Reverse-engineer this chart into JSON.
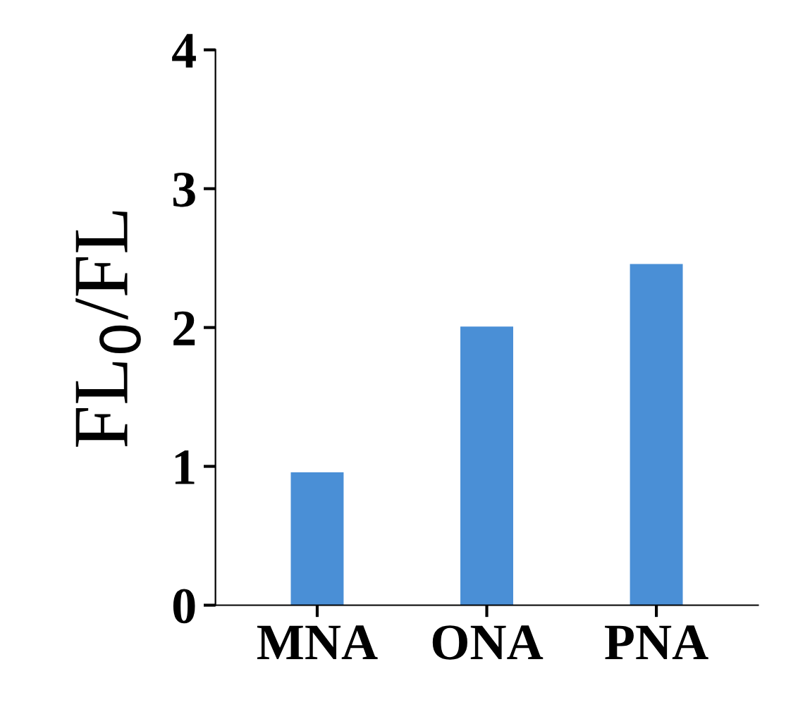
{
  "chart_data": {
    "type": "bar",
    "ylabel": "FL$_{0}$/FL",
    "categories": [
      "MNA",
      "ONA",
      "PNA"
    ],
    "values": [
      0.95,
      2.0,
      2.45
    ],
    "color": "#4a8fd6",
    "ylim": [
      0,
      4
    ],
    "yticks": [
      0,
      1,
      2,
      3,
      4
    ],
    "grid": false
  }
}
